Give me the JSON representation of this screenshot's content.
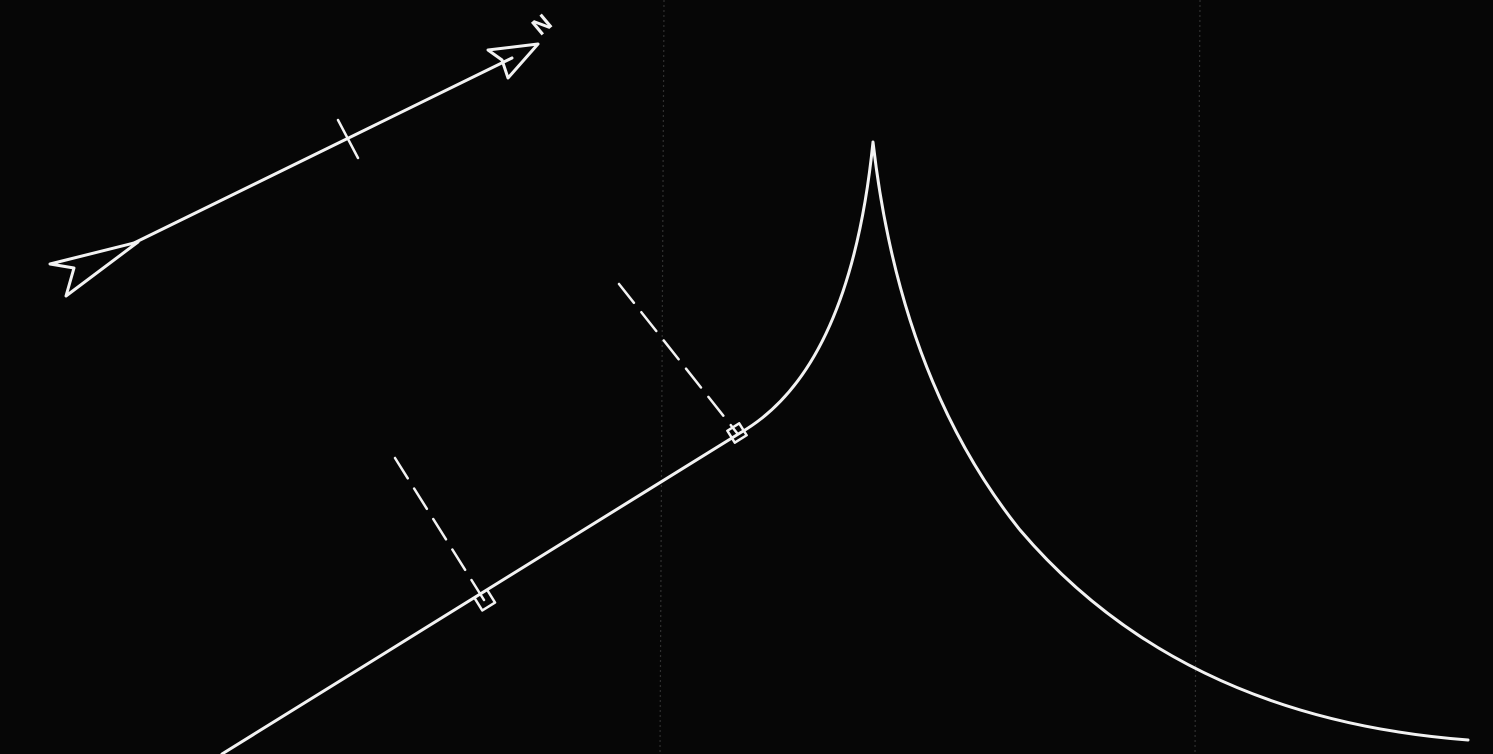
{
  "north_arrow": {
    "label": "N",
    "icon": "north-arrow-icon"
  },
  "colors": {
    "background": "#060606",
    "ink": "#f2f2f2",
    "fold": "#3a3a3a"
  }
}
